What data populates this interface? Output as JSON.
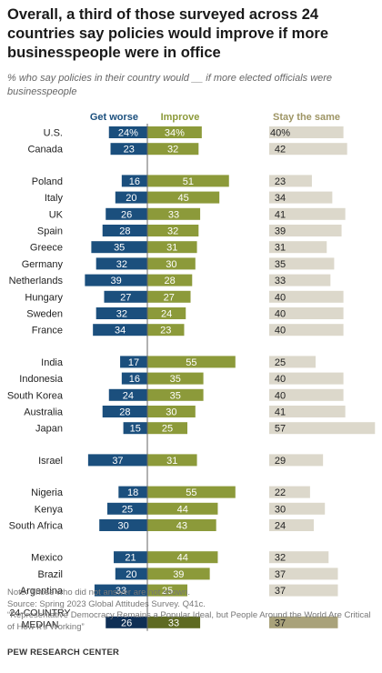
{
  "title": "Overall, a third of those surveyed across 24 countries say policies would improve if more businesspeople were in office",
  "subtitle": "% who say policies in their country would __ if more elected officials were businesspeople",
  "colors": {
    "worse": "#1b4f7d",
    "improve": "#8c9a3a",
    "same": "#dcd8cb",
    "median_worse": "#0f2f55",
    "median_improve": "#5e6a22",
    "median_same": "#a9a27a",
    "worse_header": "#1b4f7d",
    "improve_header": "#8c9a3a",
    "same_header": "#9e9565"
  },
  "chart_data": {
    "type": "bar",
    "series_headers": [
      "Get worse",
      "Improve",
      "Stay the same"
    ],
    "groups": [
      [
        "U.S.",
        "Canada"
      ],
      [
        "Poland",
        "Italy",
        "UK",
        "Spain",
        "Greece",
        "Germany",
        "Netherlands",
        "Hungary",
        "Sweden",
        "France"
      ],
      [
        "India",
        "Indonesia",
        "South Korea",
        "Australia",
        "Japan"
      ],
      [
        "Israel"
      ],
      [
        "Nigeria",
        "Kenya",
        "South Africa"
      ],
      [
        "Mexico",
        "Brazil",
        "Argentina"
      ],
      [
        "24-COUNTRY MEDIAN"
      ]
    ],
    "rows": [
      {
        "label": "U.S.",
        "worse": 24,
        "improve": 34,
        "same": 40,
        "pct": true
      },
      {
        "label": "Canada",
        "worse": 23,
        "improve": 32,
        "same": 42
      },
      {
        "label": "Poland",
        "worse": 16,
        "improve": 51,
        "same": 23
      },
      {
        "label": "Italy",
        "worse": 20,
        "improve": 45,
        "same": 34
      },
      {
        "label": "UK",
        "worse": 26,
        "improve": 33,
        "same": 41
      },
      {
        "label": "Spain",
        "worse": 28,
        "improve": 32,
        "same": 39
      },
      {
        "label": "Greece",
        "worse": 35,
        "improve": 31,
        "same": 31
      },
      {
        "label": "Germany",
        "worse": 32,
        "improve": 30,
        "same": 35
      },
      {
        "label": "Netherlands",
        "worse": 39,
        "improve": 28,
        "same": 33
      },
      {
        "label": "Hungary",
        "worse": 27,
        "improve": 27,
        "same": 40
      },
      {
        "label": "Sweden",
        "worse": 32,
        "improve": 24,
        "same": 40
      },
      {
        "label": "France",
        "worse": 34,
        "improve": 23,
        "same": 40
      },
      {
        "label": "India",
        "worse": 17,
        "improve": 55,
        "same": 25
      },
      {
        "label": "Indonesia",
        "worse": 16,
        "improve": 35,
        "same": 40
      },
      {
        "label": "South Korea",
        "worse": 24,
        "improve": 35,
        "same": 40
      },
      {
        "label": "Australia",
        "worse": 28,
        "improve": 30,
        "same": 41
      },
      {
        "label": "Japan",
        "worse": 15,
        "improve": 25,
        "same": 57
      },
      {
        "label": "Israel",
        "worse": 37,
        "improve": 31,
        "same": 29
      },
      {
        "label": "Nigeria",
        "worse": 18,
        "improve": 55,
        "same": 22
      },
      {
        "label": "Kenya",
        "worse": 25,
        "improve": 44,
        "same": 30
      },
      {
        "label": "South Africa",
        "worse": 30,
        "improve": 43,
        "same": 24
      },
      {
        "label": "Mexico",
        "worse": 21,
        "improve": 44,
        "same": 32
      },
      {
        "label": "Brazil",
        "worse": 20,
        "improve": 39,
        "same": 37
      },
      {
        "label": "Argentina",
        "worse": 33,
        "improve": 25,
        "same": 37
      },
      {
        "label": "24-COUNTRY MEDIAN",
        "worse": 26,
        "improve": 33,
        "same": 37,
        "median": true
      }
    ]
  },
  "notes": {
    "note": "Note: Those who did not answer are not shown.",
    "source": "Source: Spring 2023 Global Attitudes Survey. Q41c.",
    "report": "“Representative Democracy Remains a Popular Ideal, but People Around the World Are Critical of How It’s Working”"
  },
  "credit": "PEW RESEARCH CENTER"
}
